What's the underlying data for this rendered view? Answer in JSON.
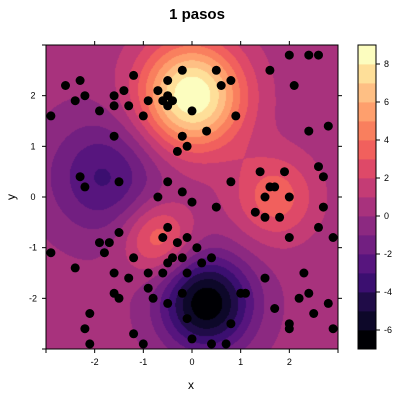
{
  "chart_data": {
    "type": "heatmap",
    "title": "1 pasos",
    "xlabel": "x",
    "ylabel": "y",
    "xlim": [
      -3,
      3
    ],
    "ylim": [
      -3,
      3
    ],
    "x_ticks": [
      -2,
      -1,
      0,
      1,
      2
    ],
    "y_ticks": [
      -2,
      -1,
      0,
      1,
      2
    ],
    "colorbar": {
      "levels": [
        -7,
        -6,
        -5,
        -4,
        -3,
        -2,
        -1,
        0,
        1,
        2,
        3,
        4,
        5,
        6,
        7,
        8,
        9
      ],
      "tick_labels": [
        "-6",
        "-4",
        "-2",
        "0",
        "2",
        "4",
        "6",
        "8"
      ],
      "tick_values": [
        -6,
        -4,
        -2,
        0,
        2,
        4,
        6,
        8
      ],
      "colors": [
        "#000004",
        "#0d0829",
        "#200c48",
        "#3b0f70",
        "#57157e",
        "#721f81",
        "#8c2981",
        "#a8327d",
        "#c43c75",
        "#de4968",
        "#f1605d",
        "#f97f5e",
        "#fe9f6d",
        "#febf84",
        "#fedf99",
        "#fcfdbf"
      ]
    },
    "surface_components": [
      {
        "type": "peak",
        "x": 0.0,
        "y": 2.0,
        "amplitude": 8.7
      },
      {
        "type": "trough",
        "x": 0.3,
        "y": -2.1,
        "amplitude": -7.2
      },
      {
        "type": "trough",
        "x": -1.8,
        "y": 0.4,
        "amplitude": -3.5
      },
      {
        "type": "peak",
        "x": 1.7,
        "y": 0.0,
        "amplitude": 3.3
      },
      {
        "type": "peak",
        "x": -0.7,
        "y": -0.8,
        "amplitude": 3.6
      }
    ],
    "points": [
      [
        -2.9,
        1.6
      ],
      [
        -2.6,
        2.2
      ],
      [
        -2.4,
        1.9
      ],
      [
        -2.3,
        2.3
      ],
      [
        -2.2,
        2.0
      ],
      [
        -1.9,
        1.7
      ],
      [
        -1.6,
        1.8
      ],
      [
        -1.6,
        2.0
      ],
      [
        -1.4,
        2.1
      ],
      [
        -1.3,
        1.8
      ],
      [
        -1.2,
        2.4
      ],
      [
        -0.9,
        1.9
      ],
      [
        -0.7,
        2.1
      ],
      [
        -0.5,
        2.3
      ],
      [
        -0.6,
        1.9
      ],
      [
        -0.5,
        1.8
      ],
      [
        -0.4,
        1.9
      ],
      [
        -0.5,
        2.0
      ],
      [
        -0.2,
        2.5
      ],
      [
        -1.0,
        1.6
      ],
      [
        0.0,
        1.7
      ],
      [
        0.5,
        2.5
      ],
      [
        0.6,
        2.2
      ],
      [
        0.8,
        2.3
      ],
      [
        0.9,
        1.6
      ],
      [
        1.6,
        2.5
      ],
      [
        2.0,
        2.8
      ],
      [
        2.1,
        2.2
      ],
      [
        2.4,
        2.8
      ],
      [
        2.6,
        2.8
      ],
      [
        2.8,
        1.4
      ],
      [
        2.7,
        0.4
      ],
      [
        2.6,
        0.6
      ],
      [
        2.4,
        1.3
      ],
      [
        0.3,
        1.3
      ],
      [
        -0.2,
        1.2
      ],
      [
        -0.1,
        1.0
      ],
      [
        -0.3,
        0.9
      ],
      [
        -1.6,
        1.2
      ],
      [
        -2.3,
        0.4
      ],
      [
        -2.2,
        0.2
      ],
      [
        -1.5,
        0.3
      ],
      [
        -0.7,
        0.0
      ],
      [
        -0.5,
        0.3
      ],
      [
        -0.2,
        0.1
      ],
      [
        0.0,
        -0.1
      ],
      [
        0.5,
        -0.2
      ],
      [
        0.8,
        0.3
      ],
      [
        1.4,
        0.5
      ],
      [
        1.6,
        0.2
      ],
      [
        1.7,
        0.2
      ],
      [
        1.9,
        0.5
      ],
      [
        2.0,
        0.0
      ],
      [
        1.5,
        0.0
      ],
      [
        1.3,
        -0.3
      ],
      [
        1.5,
        -0.4
      ],
      [
        1.8,
        -0.4
      ],
      [
        2.0,
        -0.8
      ],
      [
        2.6,
        -0.6
      ],
      [
        2.7,
        -0.2
      ],
      [
        2.9,
        -0.8
      ],
      [
        -0.5,
        -0.6
      ],
      [
        -0.6,
        -0.8
      ],
      [
        -0.3,
        -0.9
      ],
      [
        -0.1,
        -0.8
      ],
      [
        0.1,
        -1.0
      ],
      [
        0.2,
        -1.3
      ],
      [
        -0.2,
        -1.2
      ],
      [
        -0.5,
        -1.3
      ],
      [
        -0.4,
        -1.2
      ],
      [
        -0.1,
        -1.5
      ],
      [
        -2.9,
        -1.1
      ],
      [
        -2.4,
        -1.4
      ],
      [
        -1.9,
        -0.9
      ],
      [
        -1.8,
        -1.1
      ],
      [
        -1.7,
        -0.9
      ],
      [
        -1.5,
        -0.7
      ],
      [
        -1.6,
        -1.5
      ],
      [
        -1.3,
        -1.6
      ],
      [
        -1.2,
        -1.2
      ],
      [
        -0.9,
        -1.5
      ],
      [
        -0.9,
        -1.8
      ],
      [
        -1.6,
        -1.9
      ],
      [
        -1.5,
        -2.0
      ],
      [
        -2.1,
        -2.3
      ],
      [
        -2.2,
        -2.6
      ],
      [
        -2.1,
        -2.9
      ],
      [
        -1.2,
        -2.7
      ],
      [
        -1.0,
        -2.9
      ],
      [
        -0.6,
        -1.5
      ],
      [
        -0.8,
        -2.0
      ],
      [
        -0.5,
        -2.1
      ],
      [
        -0.2,
        -1.9
      ],
      [
        -0.1,
        -2.4
      ],
      [
        0.0,
        -2.8
      ],
      [
        0.4,
        -2.9
      ],
      [
        0.7,
        -2.9
      ],
      [
        0.8,
        -2.5
      ],
      [
        1.0,
        -1.9
      ],
      [
        1.1,
        -1.9
      ],
      [
        1.5,
        -1.6
      ],
      [
        1.7,
        -2.2
      ],
      [
        2.0,
        -2.5
      ],
      [
        2.0,
        -2.6
      ],
      [
        2.2,
        -2.0
      ],
      [
        2.4,
        -1.9
      ],
      [
        2.5,
        -2.3
      ],
      [
        2.8,
        -2.1
      ],
      [
        2.9,
        -2.6
      ],
      [
        2.3,
        -1.5
      ],
      [
        0.4,
        -1.2
      ]
    ]
  }
}
